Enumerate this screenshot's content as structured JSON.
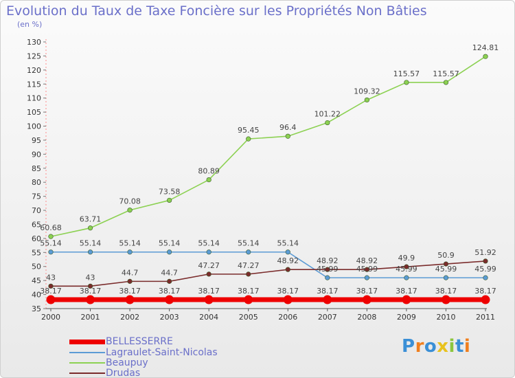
{
  "title": "Evolution du Taux de Taxe Foncière sur les Propriétés Non Bâties",
  "subtitle": "(en %)",
  "logo": {
    "text": "Proxiti",
    "letter_colors": [
      "#3a8fd6",
      "#f07f1e",
      "#3a8fd6",
      "#e8c21e",
      "#8cc63e",
      "#3a8fd6",
      "#f07f1e"
    ]
  },
  "chart_data": {
    "type": "line",
    "x": [
      "2000",
      "2001",
      "2002",
      "2003",
      "2004",
      "2005",
      "2006",
      "2007",
      "2008",
      "2009",
      "2010",
      "2011"
    ],
    "ylim": [
      35,
      130
    ],
    "yticks": [
      35,
      40,
      45,
      50,
      55,
      60,
      65,
      70,
      75,
      80,
      85,
      90,
      95,
      100,
      105,
      110,
      115,
      120,
      125,
      130
    ],
    "grid": false,
    "legend_position": "bottom-left",
    "series": [
      {
        "name": "BELLESSERRE",
        "color": "#ee0000",
        "values": [
          38.17,
          38.17,
          38.17,
          38.17,
          38.17,
          38.17,
          38.17,
          38.17,
          38.17,
          38.17,
          38.17,
          38.17
        ],
        "labels": [
          "38.17",
          "38.17",
          "38.17",
          "38.17",
          "38.17",
          "38.17",
          "38.17",
          "38.17",
          "38.17",
          "38.17",
          "38.17",
          "38.17"
        ]
      },
      {
        "name": "Lagraulet-Saint-Nicolas",
        "color": "#5b9bd5",
        "values": [
          55.14,
          55.14,
          55.14,
          55.14,
          55.14,
          55.14,
          55.14,
          45.99,
          45.99,
          45.99,
          45.99,
          45.99
        ],
        "labels": [
          "55.14",
          "55.14",
          "55.14",
          "55.14",
          "55.14",
          "55.14",
          "55.14",
          "45.99",
          "45.99",
          "45.99",
          "45.99",
          "45.99"
        ]
      },
      {
        "name": "Beaupuy",
        "color": "#8cd152",
        "values": [
          60.68,
          63.71,
          70.08,
          73.58,
          80.89,
          95.45,
          96.4,
          101.22,
          109.32,
          115.57,
          115.57,
          124.81
        ],
        "labels": [
          "60.68",
          "63.71",
          "70.08",
          "73.58",
          "80.89",
          "95.45",
          "96.4",
          "101.22",
          "109.32",
          "115.57",
          "115.57",
          "124.81"
        ]
      },
      {
        "name": "Drudas",
        "color": "#7a2b2b",
        "values": [
          43,
          43,
          44.7,
          44.7,
          47.27,
          47.27,
          48.92,
          48.92,
          48.92,
          49.9,
          50.9,
          51.92
        ],
        "labels": [
          "43",
          "43",
          "44.7",
          "44.7",
          "47.27",
          "47.27",
          "48.92",
          "48.92",
          "48.92",
          "49.9",
          "50.9",
          "51.92"
        ]
      }
    ]
  }
}
